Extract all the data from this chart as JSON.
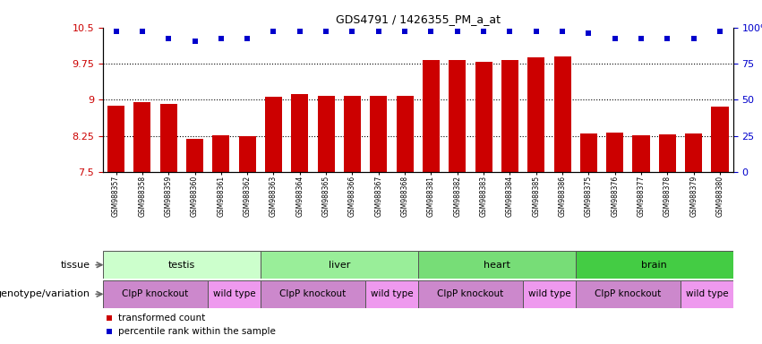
{
  "title": "GDS4791 / 1426355_PM_a_at",
  "samples": [
    "GSM988357",
    "GSM988358",
    "GSM988359",
    "GSM988360",
    "GSM988361",
    "GSM988362",
    "GSM988363",
    "GSM988364",
    "GSM988365",
    "GSM988366",
    "GSM988367",
    "GSM988368",
    "GSM988381",
    "GSM988382",
    "GSM988383",
    "GSM988384",
    "GSM988385",
    "GSM988386",
    "GSM988375",
    "GSM988376",
    "GSM988377",
    "GSM988378",
    "GSM988379",
    "GSM988380"
  ],
  "bar_values": [
    8.87,
    8.95,
    8.92,
    8.18,
    8.27,
    8.25,
    9.06,
    9.11,
    9.09,
    9.09,
    9.09,
    9.09,
    9.82,
    9.82,
    9.79,
    9.82,
    9.88,
    9.9,
    8.3,
    8.32,
    8.26,
    8.28,
    8.3,
    8.85
  ],
  "percentile_values": [
    10.42,
    10.42,
    10.28,
    10.22,
    10.28,
    10.28,
    10.42,
    10.42,
    10.42,
    10.42,
    10.42,
    10.42,
    10.42,
    10.42,
    10.42,
    10.42,
    10.42,
    10.42,
    10.38,
    10.28,
    10.28,
    10.28,
    10.28,
    10.42
  ],
  "bar_color": "#cc0000",
  "percentile_color": "#0000cc",
  "ylim": [
    7.5,
    10.5
  ],
  "yticks_left": [
    7.5,
    8.25,
    9.0,
    9.75,
    10.5
  ],
  "yticks_right": [
    0,
    25,
    50,
    75,
    100
  ],
  "grid_lines": [
    8.25,
    9.0,
    9.75
  ],
  "tissue_groups": [
    {
      "label": "testis",
      "start": 0,
      "end": 6,
      "color": "#ccffcc"
    },
    {
      "label": "liver",
      "start": 6,
      "end": 12,
      "color": "#99ee99"
    },
    {
      "label": "heart",
      "start": 12,
      "end": 18,
      "color": "#77dd77"
    },
    {
      "label": "brain",
      "start": 18,
      "end": 24,
      "color": "#44cc44"
    }
  ],
  "genotype_groups": [
    {
      "label": "ClpP knockout",
      "start": 0,
      "end": 4,
      "color": "#cc88cc"
    },
    {
      "label": "wild type",
      "start": 4,
      "end": 6,
      "color": "#ee99ee"
    },
    {
      "label": "ClpP knockout",
      "start": 6,
      "end": 10,
      "color": "#cc88cc"
    },
    {
      "label": "wild type",
      "start": 10,
      "end": 12,
      "color": "#ee99ee"
    },
    {
      "label": "ClpP knockout",
      "start": 12,
      "end": 16,
      "color": "#cc88cc"
    },
    {
      "label": "wild type",
      "start": 16,
      "end": 18,
      "color": "#ee99ee"
    },
    {
      "label": "ClpP knockout",
      "start": 18,
      "end": 22,
      "color": "#cc88cc"
    },
    {
      "label": "wild type",
      "start": 22,
      "end": 24,
      "color": "#ee99ee"
    }
  ],
  "legend_bar_label": "transformed count",
  "legend_dot_label": "percentile rank within the sample",
  "tissue_label": "tissue",
  "genotype_label": "genotype/variation",
  "bg_color": "#e8e8e8"
}
